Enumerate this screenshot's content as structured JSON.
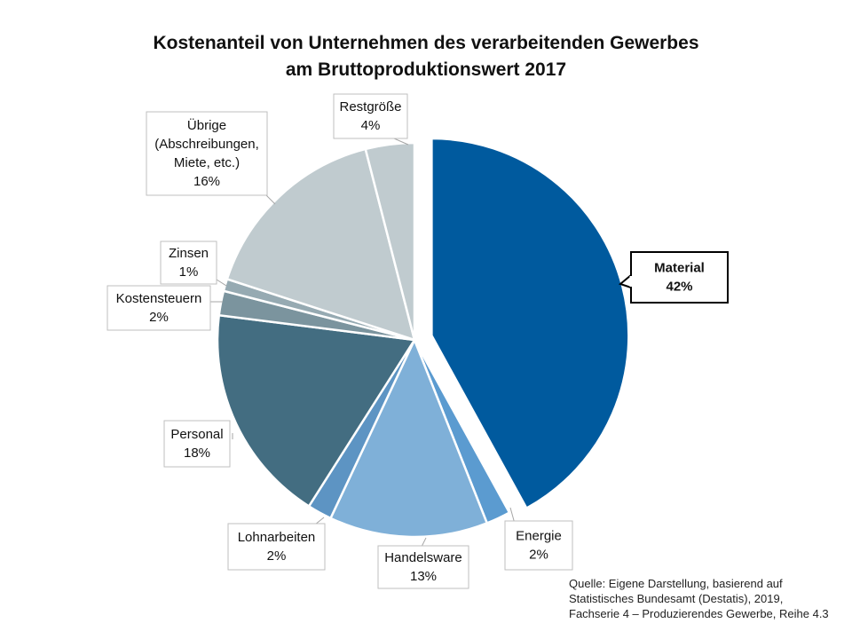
{
  "chart_data": {
    "type": "pie",
    "title": "Kostenanteil von Unternehmen des verarbeitenden Gewerbes am Bruttoproduktionswert 2017",
    "title_lines": [
      "Kostenanteil von Unternehmen des verarbeitenden Gewerbes",
      "am Bruttoproduktionswert 2017"
    ],
    "legend": "none",
    "slices": [
      {
        "label": "Material",
        "label_lines": [
          "Material"
        ],
        "percent_label": "42%",
        "value": 42,
        "color": "#005a9e",
        "exploded": true,
        "bold": true
      },
      {
        "label": "Energie",
        "label_lines": [
          "Energie"
        ],
        "percent_label": "2%",
        "value": 2,
        "color": "#5b9bd0",
        "exploded": false,
        "bold": false
      },
      {
        "label": "Handelsware",
        "label_lines": [
          "Handelsware"
        ],
        "percent_label": "13%",
        "value": 13,
        "color": "#7fb0d8",
        "exploded": false,
        "bold": false
      },
      {
        "label": "Lohnarbeiten",
        "label_lines": [
          "Lohnarbeiten"
        ],
        "percent_label": "2%",
        "value": 2,
        "color": "#5d94c3",
        "exploded": false,
        "bold": false
      },
      {
        "label": "Personal",
        "label_lines": [
          "Personal"
        ],
        "percent_label": "18%",
        "value": 18,
        "color": "#436d81",
        "exploded": false,
        "bold": false
      },
      {
        "label": "Kostensteuern",
        "label_lines": [
          "Kostensteuern"
        ],
        "percent_label": "2%",
        "value": 2,
        "color": "#7b949e",
        "exploded": false,
        "bold": false
      },
      {
        "label": "Zinsen",
        "label_lines": [
          "Zinsen"
        ],
        "percent_label": "1%",
        "value": 1,
        "color": "#96aab2",
        "exploded": false,
        "bold": false
      },
      {
        "label": "Übrige (Abschreibungen, Miete, etc.)",
        "label_lines": [
          "Übrige",
          "(Abschreibungen,",
          "Miete, etc.)"
        ],
        "percent_label": "16%",
        "value": 16,
        "color": "#c0cbcf",
        "exploded": false,
        "bold": false
      },
      {
        "label": "Restgröße",
        "label_lines": [
          "Restgröße"
        ],
        "percent_label": "4%",
        "value": 4,
        "color": "#c0cbcf",
        "exploded": false,
        "bold": false
      }
    ]
  },
  "source": {
    "lines": [
      "Quelle: Eigene Darstellung, basierend auf",
      "Statistisches Bundesamt (Destatis), 2019,",
      "Fachserie 4 – Produzierendes Gewerbe, Reihe 4.3"
    ]
  }
}
